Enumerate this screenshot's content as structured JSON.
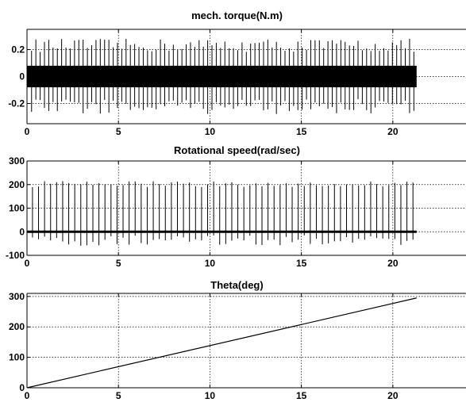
{
  "chart_data": [
    {
      "type": "line",
      "title": "mech. torque(N.m)",
      "xlim": [
        0,
        24
      ],
      "ylim": [
        -0.35,
        0.35
      ],
      "x_ticks": [
        "0",
        "5",
        "10",
        "15",
        "20"
      ],
      "y_ticks": [
        "0.2",
        "0",
        "-0.2"
      ],
      "grid": true,
      "series": [
        {
          "style": "dense oscillation with periodic spikes",
          "x_range": [
            0,
            21.3
          ],
          "band_envelope": [
            -0.08,
            0.08
          ],
          "spike_envelope": [
            -0.28,
            0.28
          ],
          "spike_count": 90
        }
      ]
    },
    {
      "type": "line",
      "title": "Rotational speed(rad/sec)",
      "xlim": [
        0,
        24
      ],
      "ylim": [
        -100,
        300
      ],
      "x_ticks": [
        "0",
        "5",
        "10",
        "15",
        "20"
      ],
      "y_ticks": [
        "300",
        "200",
        "100",
        "0",
        "-100"
      ],
      "grid": true,
      "series": [
        {
          "style": "near-zero baseline with periodic spikes",
          "x_range": [
            0,
            21.3
          ],
          "baseline": 0,
          "spike_max": 215,
          "spike_min": -60,
          "spike_count": 64
        }
      ]
    },
    {
      "type": "line",
      "title": "Theta(deg)",
      "xlim": [
        0,
        24
      ],
      "ylim": [
        0,
        310
      ],
      "x_ticks": [
        "0",
        "5",
        "10",
        "15",
        "20"
      ],
      "y_ticks": [
        "300",
        "200",
        "100",
        "0"
      ],
      "grid": true,
      "series": [
        {
          "x": [
            0,
            21.3
          ],
          "y": [
            0,
            295
          ]
        }
      ]
    }
  ]
}
